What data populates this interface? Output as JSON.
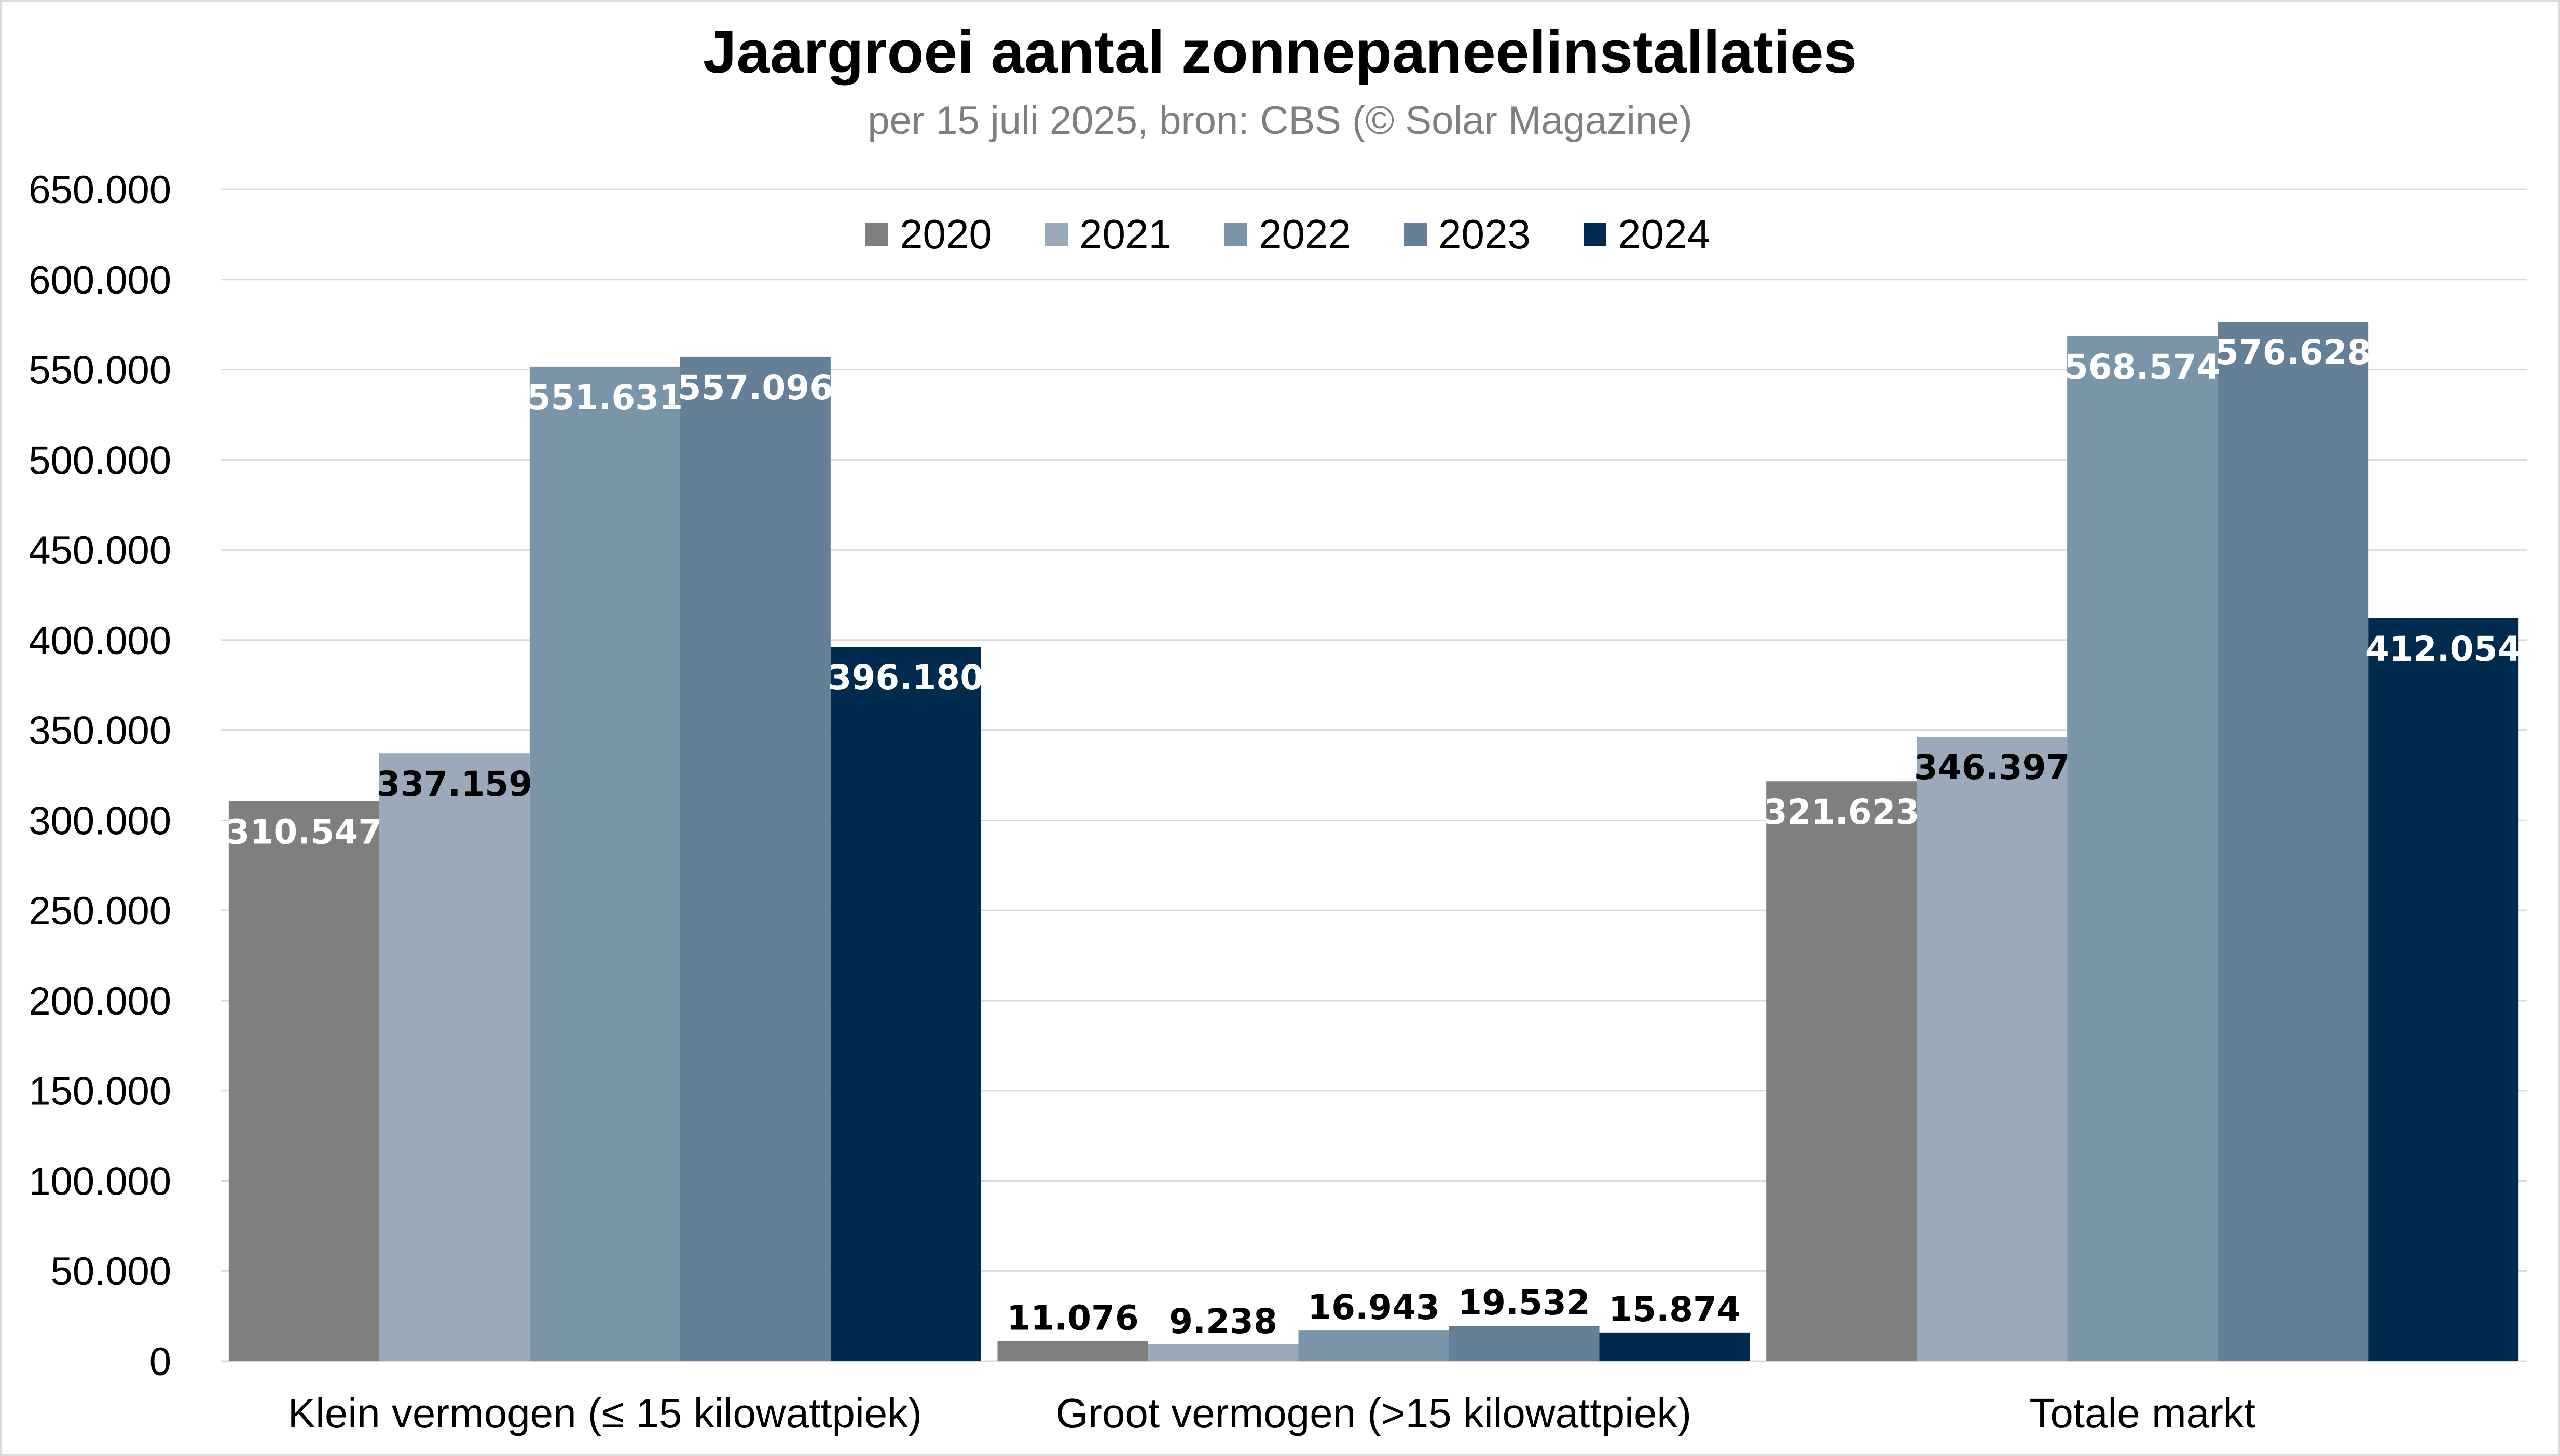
{
  "chart_data": {
    "type": "bar",
    "title": "Jaargroei aantal zonnepaneelinstallaties",
    "subtitle": "per 15 juli 2025, bron: CBS (© Solar Magazine)",
    "categories": [
      "Klein vermogen (≤ 15 kilowattpiek)",
      "Groot vermogen (>15 kilowattpiek)",
      "Totale markt"
    ],
    "series": [
      {
        "name": "2020",
        "color": "#7f7f7f",
        "values": [
          310547,
          11076,
          321623
        ],
        "labels": [
          "310.547",
          "11.076",
          "321.623"
        ]
      },
      {
        "name": "2021",
        "color": "#9aaaba",
        "values": [
          337159,
          9238,
          346397
        ],
        "labels": [
          "337.159",
          "9.238",
          "346.397"
        ]
      },
      {
        "name": "2022",
        "color": "#7b95a8",
        "values": [
          551631,
          16943,
          568574
        ],
        "labels": [
          "551.631",
          "16.943",
          "568.574"
        ]
      },
      {
        "name": "2023",
        "color": "#647f96",
        "values": [
          557096,
          19532,
          576628
        ],
        "labels": [
          "557.096",
          "19.532",
          "576.628"
        ]
      },
      {
        "name": "2024",
        "color": "#002b4f",
        "values": [
          396180,
          15874,
          412054
        ],
        "labels": [
          "396.180",
          "15.874",
          "412.054"
        ]
      }
    ],
    "ylim": [
      0,
      650000
    ],
    "yticks": [
      0,
      50000,
      100000,
      150000,
      200000,
      250000,
      300000,
      350000,
      400000,
      450000,
      500000,
      550000,
      600000,
      650000
    ],
    "ytick_labels": [
      "0",
      "50.000",
      "100.000",
      "150.000",
      "200.000",
      "250.000",
      "300.000",
      "350.000",
      "400.000",
      "450.000",
      "500.000",
      "550.000",
      "600.000",
      "650.000"
    ],
    "xlabel": "",
    "ylabel": "",
    "grid": true,
    "legend_position": "top-center",
    "gridline_color": "#d9d9d9",
    "label_color_inside": "#ffffff",
    "label_color_outside": "#000000"
  }
}
